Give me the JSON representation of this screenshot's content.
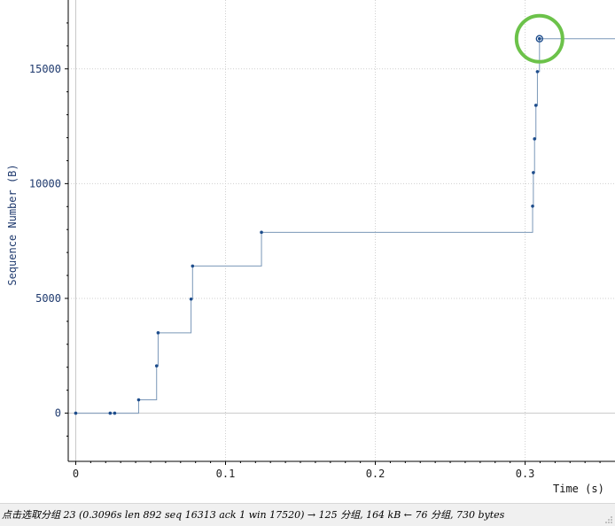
{
  "chart_data": {
    "type": "line",
    "style": "step",
    "xlabel": "Time (s)",
    "ylabel": "Sequence Number (B)",
    "xlim": [
      -0.005,
      0.36
    ],
    "ylim": [
      -2100,
      18000
    ],
    "x_ticks": [
      0,
      0.1,
      0.2,
      0.3
    ],
    "x_tick_labels": [
      "0",
      "0.1",
      "0.2",
      "0.3"
    ],
    "y_ticks": [
      0,
      5000,
      10000,
      15000
    ],
    "y_tick_labels": [
      "0",
      "5000",
      "10000",
      "15000"
    ],
    "grid": true,
    "series": [
      {
        "color": "#7a97b8",
        "marker_color": "#1e4d8c",
        "points": [
          {
            "x": 0.0,
            "y": 0
          },
          {
            "x": 0.023,
            "y": 0
          },
          {
            "x": 0.026,
            "y": 0
          },
          {
            "x": 0.042,
            "y": 580
          },
          {
            "x": 0.054,
            "y": 2060
          },
          {
            "x": 0.055,
            "y": 3500
          },
          {
            "x": 0.077,
            "y": 4970
          },
          {
            "x": 0.078,
            "y": 6410
          },
          {
            "x": 0.124,
            "y": 7880
          },
          {
            "x": 0.305,
            "y": 9020
          },
          {
            "x": 0.3055,
            "y": 10480
          },
          {
            "x": 0.3063,
            "y": 11950
          },
          {
            "x": 0.3072,
            "y": 13410
          },
          {
            "x": 0.3082,
            "y": 14880
          },
          {
            "x": 0.3096,
            "y": 16313
          }
        ],
        "trailing_x": 0.36
      }
    ],
    "highlighted_point": {
      "x": 0.3096,
      "y": 16313
    },
    "highlight_color": "#6cc24a"
  },
  "status_bar": {
    "text": "点击选取分组 23 (0.3096s len 892 seq 16313 ack 1 win 17520) → 125 分组, 164 kB ← 76 分组, 730 bytes"
  }
}
